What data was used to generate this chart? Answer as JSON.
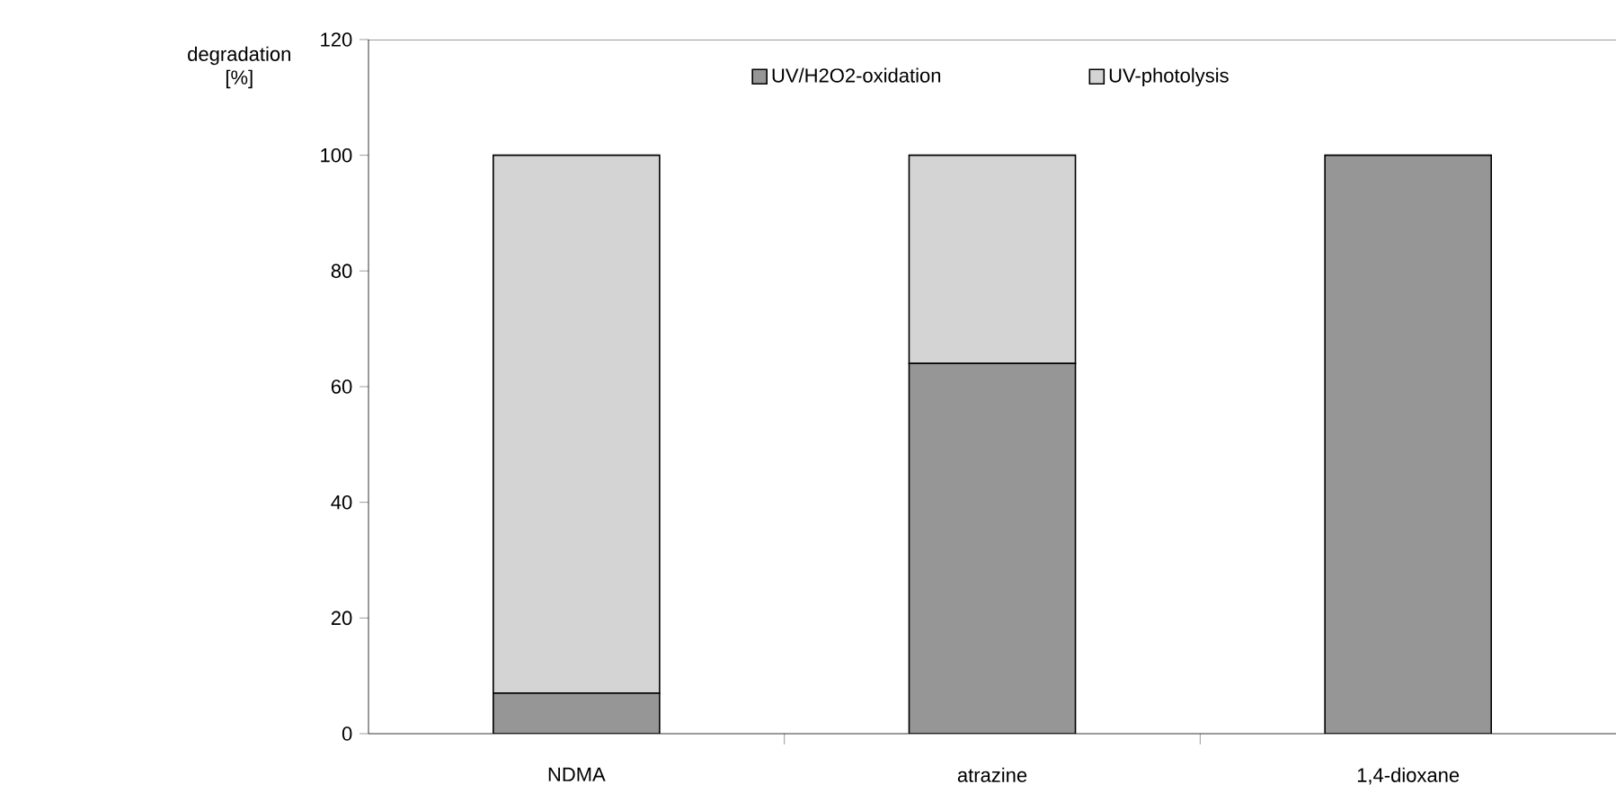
{
  "chart_data": {
    "type": "bar",
    "stacked": true,
    "ylabel": "degradation [%]",
    "categories": [
      "NDMA",
      "atrazine",
      "1,4-dioxane"
    ],
    "series": [
      {
        "name": "UV/H2O2-oxidation",
        "color": "#969696",
        "values": [
          7,
          64,
          100
        ]
      },
      {
        "name": "UV-photolysis",
        "color": "#d4d4d4",
        "values": [
          93,
          36,
          0
        ]
      }
    ],
    "ylim": [
      0,
      120
    ],
    "yticks": [
      0,
      20,
      40,
      60,
      80,
      100,
      120
    ],
    "grid": false,
    "legend": "top"
  }
}
